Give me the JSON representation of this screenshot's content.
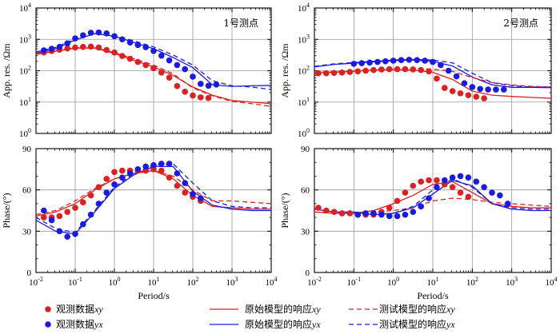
{
  "chart_data": [
    {
      "type": "scatter+line",
      "station_label": "1号测点",
      "ylabel": "App. res. /Ωm",
      "xlabel": "",
      "xscale": "log",
      "yscale": "log",
      "xlim_exp": [
        -2,
        4
      ],
      "ylim_exp": [
        0,
        4
      ],
      "series": [
        {
          "name": "观测数据xy",
          "kind": "points",
          "color": "#e02020",
          "x_log": [
            -1.8,
            -1.6,
            -1.4,
            -1.2,
            -1.0,
            -0.8,
            -0.6,
            -0.4,
            -0.2,
            0.0,
            0.2,
            0.4,
            0.6,
            0.8,
            1.0,
            1.2,
            1.4,
            1.6,
            1.8,
            2.0,
            2.2,
            2.4
          ],
          "y_log": [
            2.58,
            2.63,
            2.67,
            2.71,
            2.74,
            2.76,
            2.77,
            2.74,
            2.66,
            2.58,
            2.47,
            2.38,
            2.28,
            2.18,
            2.08,
            1.94,
            1.78,
            1.51,
            1.33,
            1.21,
            1.15,
            1.13
          ]
        },
        {
          "name": "观测数据yx",
          "kind": "points",
          "color": "#1a1ae6",
          "x_log": [
            -1.8,
            -1.6,
            -1.4,
            -1.2,
            -1.0,
            -0.8,
            -0.6,
            -0.4,
            -0.2,
            0.0,
            0.2,
            0.4,
            0.6,
            0.8,
            1.0,
            1.2,
            1.4,
            1.6,
            1.8,
            2.0,
            2.2,
            2.4,
            2.6
          ],
          "y_log": [
            2.65,
            2.7,
            2.76,
            2.87,
            3.03,
            3.13,
            3.21,
            3.22,
            3.19,
            3.1,
            3.0,
            2.9,
            2.82,
            2.75,
            2.63,
            2.48,
            2.33,
            2.18,
            2.05,
            1.81,
            1.58,
            1.52,
            1.56
          ]
        },
        {
          "name": "原始模型的响应xy",
          "kind": "line",
          "dash": "solid",
          "color": "#e02020",
          "x_log": [
            -2.0,
            -1.5,
            -1.0,
            -0.5,
            0.0,
            0.5,
            1.0,
            1.5,
            2.0,
            2.5,
            3.0,
            3.5,
            4.0
          ],
          "y_log": [
            2.52,
            2.62,
            2.72,
            2.72,
            2.55,
            2.33,
            2.12,
            1.85,
            1.48,
            1.22,
            1.05,
            1.0,
            0.95
          ]
        },
        {
          "name": "原始模型的响应yx",
          "kind": "line",
          "dash": "solid",
          "color": "#1a1ae6",
          "x_log": [
            -2.0,
            -1.5,
            -1.0,
            -0.5,
            0.0,
            0.5,
            1.0,
            1.5,
            2.0,
            2.5,
            3.0,
            3.5,
            4.0
          ],
          "y_log": [
            2.56,
            2.7,
            2.98,
            3.18,
            3.1,
            2.9,
            2.7,
            2.42,
            2.1,
            1.55,
            1.5,
            1.52,
            1.53
          ]
        },
        {
          "name": "测试模型的响应xy",
          "kind": "line",
          "dash": "dashed",
          "color": "#e02020",
          "x_log": [
            -2.0,
            -1.5,
            -1.0,
            -0.5,
            0.0,
            0.5,
            1.0,
            1.5,
            2.0,
            2.5,
            3.0,
            3.5,
            4.0
          ],
          "y_log": [
            2.55,
            2.63,
            2.73,
            2.73,
            2.58,
            2.38,
            2.18,
            1.9,
            1.45,
            1.2,
            1.02,
            0.95,
            0.86
          ]
        },
        {
          "name": "测试模型的响应yx",
          "kind": "line",
          "dash": "dashed",
          "color": "#1a1ae6",
          "x_log": [
            -2.0,
            -1.5,
            -1.0,
            -0.5,
            0.0,
            0.5,
            1.0,
            1.5,
            2.0,
            2.5,
            3.0,
            3.5,
            4.0
          ],
          "y_log": [
            2.6,
            2.74,
            3.02,
            3.2,
            3.12,
            2.95,
            2.76,
            2.5,
            2.18,
            1.68,
            1.52,
            1.48,
            1.4
          ]
        }
      ]
    },
    {
      "type": "scatter+line",
      "station_label": "2号测点",
      "ylabel": "App. res. /Ωm",
      "xlabel": "",
      "xscale": "log",
      "yscale": "log",
      "xlim_exp": [
        -2,
        4
      ],
      "ylim_exp": [
        0,
        4
      ],
      "series": [
        {
          "name": "观测数据xy",
          "kind": "points",
          "color": "#e02020",
          "x_log": [
            -1.9,
            -1.7,
            -1.5,
            -1.3,
            -1.1,
            -0.9,
            -0.7,
            -0.5,
            -0.3,
            -0.1,
            0.1,
            0.3,
            0.5,
            0.7,
            0.9,
            1.1,
            1.3,
            1.5,
            1.7,
            1.9,
            2.1,
            2.3
          ],
          "y_log": [
            1.92,
            1.92,
            1.93,
            1.94,
            1.96,
            1.98,
            2.0,
            2.02,
            2.04,
            2.05,
            2.05,
            2.05,
            2.04,
            2.02,
            1.98,
            1.75,
            1.45,
            1.35,
            1.28,
            1.22,
            1.17,
            1.12
          ]
        },
        {
          "name": "观测数据yx",
          "kind": "points",
          "color": "#1a1ae6",
          "x_log": [
            -1.0,
            -0.8,
            -0.6,
            -0.4,
            -0.2,
            0.0,
            0.2,
            0.4,
            0.6,
            0.8,
            1.0,
            1.2,
            1.4,
            1.6,
            1.8,
            2.0,
            2.2,
            2.4,
            2.6,
            2.8
          ],
          "y_log": [
            2.22,
            2.24,
            2.26,
            2.28,
            2.3,
            2.32,
            2.34,
            2.35,
            2.34,
            2.32,
            2.28,
            2.18,
            2.0,
            1.82,
            1.6,
            1.48,
            1.42,
            1.4,
            1.4,
            1.4
          ]
        },
        {
          "name": "原始模型的响应xy",
          "kind": "line",
          "dash": "solid",
          "color": "#e02020",
          "x_log": [
            -2.0,
            -1.5,
            -1.0,
            -0.5,
            0.0,
            0.5,
            1.0,
            1.5,
            2.0,
            2.5,
            3.0,
            3.5,
            4.0
          ],
          "y_log": [
            1.93,
            1.95,
            1.98,
            2.02,
            2.04,
            2.02,
            1.95,
            1.72,
            1.35,
            1.22,
            1.18,
            1.15,
            1.12
          ]
        },
        {
          "name": "原始模型的响应yx",
          "kind": "line",
          "dash": "solid",
          "color": "#1a1ae6",
          "x_log": [
            -2.0,
            -1.5,
            -1.0,
            -0.5,
            0.0,
            0.5,
            1.0,
            1.5,
            2.0,
            2.5,
            3.0,
            3.5,
            4.0
          ],
          "y_log": [
            2.12,
            2.2,
            2.24,
            2.28,
            2.32,
            2.34,
            2.3,
            2.15,
            1.8,
            1.55,
            1.47,
            1.47,
            1.46
          ]
        },
        {
          "name": "测试模型的响应xy",
          "kind": "line",
          "dash": "dashed",
          "color": "#e02020",
          "x_log": [
            -2.0,
            -1.5,
            -1.0,
            -0.5,
            0.0,
            0.5,
            1.0,
            1.5,
            2.0,
            2.5,
            3.0,
            3.5,
            4.0
          ],
          "y_log": [
            1.95,
            1.97,
            2.0,
            2.04,
            2.07,
            2.08,
            2.05,
            1.98,
            1.78,
            1.62,
            1.55,
            1.5,
            1.48
          ]
        },
        {
          "name": "测试模型的响应yx",
          "kind": "line",
          "dash": "dashed",
          "color": "#1a1ae6",
          "x_log": [
            -2.0,
            -1.5,
            -1.0,
            -0.5,
            0.0,
            0.5,
            1.0,
            1.5,
            2.0,
            2.5,
            3.0,
            3.5,
            4.0
          ],
          "y_log": [
            2.14,
            2.22,
            2.26,
            2.3,
            2.34,
            2.36,
            2.34,
            2.25,
            1.92,
            1.62,
            1.52,
            1.48,
            1.48
          ]
        }
      ]
    },
    {
      "type": "scatter+line",
      "ylabel": "Phase/(°)",
      "xlabel": "Period/s",
      "xscale": "log",
      "yscale": "linear",
      "xlim_exp": [
        -2,
        4
      ],
      "ylim": [
        0,
        90
      ],
      "series": [
        {
          "name": "观测数据xy",
          "kind": "points",
          "color": "#e02020",
          "x_log": [
            -1.8,
            -1.6,
            -1.4,
            -1.2,
            -1.0,
            -0.8,
            -0.6,
            -0.4,
            -0.2,
            0.0,
            0.2,
            0.4,
            0.6,
            0.8,
            1.0,
            1.2,
            1.4,
            1.6,
            1.8,
            2.0,
            2.2
          ],
          "y": [
            40,
            40,
            41,
            44,
            47,
            51,
            56,
            62,
            68,
            73,
            74,
            74,
            74,
            74,
            75,
            74,
            69,
            63,
            58,
            55,
            52
          ]
        },
        {
          "name": "观测数据yx",
          "kind": "points",
          "color": "#1a1ae6",
          "x_log": [
            -1.8,
            -1.6,
            -1.4,
            -1.2,
            -1.0,
            -0.8,
            -0.6,
            -0.4,
            -0.2,
            0.0,
            0.2,
            0.4,
            0.6,
            0.8,
            1.0,
            1.2,
            1.4,
            1.6,
            1.8,
            2.0,
            2.2
          ],
          "y": [
            45,
            38,
            30,
            26,
            28,
            35,
            42,
            50,
            58,
            64,
            69,
            72,
            75,
            77,
            78,
            79,
            79,
            72,
            65,
            57,
            54
          ]
        },
        {
          "name": "原始模型的响应xy",
          "kind": "line",
          "dash": "solid",
          "color": "#e02020",
          "x_log": [
            -2.0,
            -1.5,
            -1.0,
            -0.5,
            0.0,
            0.5,
            1.0,
            1.5,
            2.0,
            2.5,
            3.0,
            3.5,
            4.0
          ],
          "y": [
            41,
            44,
            50,
            60,
            68,
            72,
            74,
            68,
            56,
            48,
            47,
            46,
            46
          ]
        },
        {
          "name": "原始模型的响应yx",
          "kind": "line",
          "dash": "solid",
          "color": "#1a1ae6",
          "x_log": [
            -2.0,
            -1.5,
            -1.0,
            -0.5,
            0.0,
            0.5,
            1.0,
            1.5,
            2.0,
            2.5,
            3.0,
            3.5,
            4.0
          ],
          "y": [
            38,
            30,
            28,
            44,
            61,
            71,
            77,
            77,
            59,
            49,
            46,
            45,
            45
          ]
        },
        {
          "name": "测试模型的响应xy",
          "kind": "line",
          "dash": "dashed",
          "color": "#e02020",
          "x_log": [
            -2.0,
            -1.5,
            -1.0,
            -0.5,
            0.0,
            0.5,
            1.0,
            1.5,
            2.0,
            2.5,
            3.0,
            3.5,
            4.0
          ],
          "y": [
            42,
            45,
            52,
            61,
            68,
            72,
            74,
            70,
            60,
            52,
            52,
            51,
            50
          ]
        },
        {
          "name": "测试模型的响应yx",
          "kind": "line",
          "dash": "dashed",
          "color": "#1a1ae6",
          "x_log": [
            -2.0,
            -1.5,
            -1.0,
            -0.5,
            0.0,
            0.5,
            1.0,
            1.5,
            2.0,
            2.5,
            3.0,
            3.5,
            4.0
          ],
          "y": [
            40,
            32,
            29,
            45,
            62,
            72,
            78,
            79,
            65,
            52,
            48,
            47,
            47
          ]
        }
      ]
    },
    {
      "type": "scatter+line",
      "ylabel": "Phase/(°)",
      "xlabel": "Period/s",
      "xscale": "log",
      "yscale": "linear",
      "xlim_exp": [
        -2,
        4
      ],
      "ylim": [
        0,
        90
      ],
      "series": [
        {
          "name": "观测数据xy",
          "kind": "points",
          "color": "#e02020",
          "x_log": [
            -1.9,
            -1.7,
            -1.5,
            -1.3,
            -1.1,
            -0.9,
            -0.7,
            -0.5,
            -0.3,
            -0.1,
            0.1,
            0.3,
            0.5,
            0.7,
            0.9,
            1.1,
            1.3,
            1.5,
            1.7,
            1.9
          ],
          "y": [
            47,
            45,
            44,
            43,
            43,
            42,
            42,
            42,
            44,
            47,
            52,
            58,
            63,
            66,
            67,
            67,
            64,
            62,
            58,
            55
          ]
        },
        {
          "name": "观测数据yx",
          "kind": "points",
          "color": "#1a1ae6",
          "x_log": [
            -0.9,
            -0.7,
            -0.5,
            -0.3,
            -0.1,
            0.1,
            0.3,
            0.5,
            0.7,
            0.9,
            1.1,
            1.3,
            1.5,
            1.7,
            1.9,
            2.1,
            2.3,
            2.5,
            2.7,
            2.9
          ],
          "y": [
            42,
            43,
            43,
            42,
            41,
            41,
            42,
            44,
            48,
            54,
            62,
            67,
            69,
            70,
            69,
            66,
            62,
            58,
            56,
            50
          ]
        },
        {
          "name": "原始模型的响应xy",
          "kind": "line",
          "dash": "solid",
          "color": "#e02020",
          "x_log": [
            -2.0,
            -1.5,
            -1.0,
            -0.5,
            0.0,
            0.5,
            1.0,
            1.5,
            2.0,
            2.5,
            3.0,
            3.5,
            4.0
          ],
          "y": [
            44,
            43,
            43,
            45,
            50,
            56,
            64,
            66,
            58,
            50,
            48,
            47,
            47
          ]
        },
        {
          "name": "原始模型的响应yx",
          "kind": "line",
          "dash": "solid",
          "color": "#1a1ae6",
          "x_log": [
            -2.0,
            -1.5,
            -1.0,
            -0.5,
            0.0,
            0.5,
            1.0,
            1.5,
            2.0,
            2.5,
            3.0,
            3.5,
            4.0
          ],
          "y": [
            46,
            44,
            44,
            42,
            43,
            47,
            57,
            67,
            63,
            50,
            46,
            45,
            45
          ]
        },
        {
          "name": "测试模型的响应xy",
          "kind": "line",
          "dash": "dashed",
          "color": "#e02020",
          "x_log": [
            -2.0,
            -1.5,
            -1.0,
            -0.5,
            0.0,
            0.5,
            1.0,
            1.5,
            2.0,
            2.5,
            3.0,
            3.5,
            4.0
          ],
          "y": [
            44,
            43,
            43,
            44,
            45,
            47,
            52,
            54,
            53,
            51,
            50,
            49,
            48
          ]
        },
        {
          "name": "测试模型的响应yx",
          "kind": "line",
          "dash": "dashed",
          "color": "#1a1ae6",
          "x_log": [
            -2.0,
            -1.5,
            -1.0,
            -0.5,
            0.0,
            0.5,
            1.0,
            1.5,
            2.0,
            2.5,
            3.0,
            3.5,
            4.0
          ],
          "y": [
            46,
            44,
            43,
            42,
            43,
            48,
            60,
            68,
            62,
            50,
            47,
            46,
            46
          ]
        }
      ]
    }
  ],
  "legend": {
    "items": [
      {
        "label": "观测数据xy",
        "marker": "dot",
        "color": "#e02020"
      },
      {
        "label": "原始模型的响应xy",
        "marker": "solid-line",
        "color": "#e02020"
      },
      {
        "label": "测试模型的响应xy",
        "marker": "dashed-line",
        "color": "#e02020"
      },
      {
        "label": "观测数据yx",
        "marker": "dot",
        "color": "#1a1ae6"
      },
      {
        "label": "原始模型的响应yx",
        "marker": "solid-line",
        "color": "#1a1ae6"
      },
      {
        "label": "测试模型的响应yx",
        "marker": "dashed-line",
        "color": "#1a1ae6"
      }
    ]
  },
  "colors": {
    "xy": "#e02020",
    "yx": "#1a1ae6"
  }
}
